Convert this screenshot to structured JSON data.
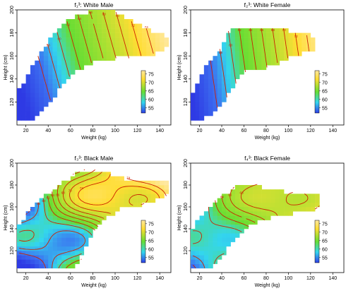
{
  "chart_data": [
    {
      "type": "heatmap",
      "title": "f₁³: White Male",
      "xlabel": "Weight (kg)",
      "ylabel": "Height (cm)",
      "xlim": [
        12,
        150
      ],
      "ylim": [
        100,
        200
      ],
      "xticks": [
        20,
        40,
        60,
        80,
        100,
        120,
        140
      ],
      "yticks": [
        120,
        140,
        160,
        180,
        200
      ],
      "colorbar": {
        "ticks": [
          75,
          70,
          65,
          60,
          55
        ],
        "range": [
          52,
          77
        ]
      },
      "colors": {
        "low": "#3a4cf0",
        "mid_low": "#33d6ee",
        "mid": "#66dd33",
        "high": "#ffdd33",
        "top": "#ffe8a0",
        "contour": "#cc2200"
      },
      "region": [
        [
          14,
          105
        ],
        [
          14,
          130
        ],
        [
          26,
          152
        ],
        [
          42,
          175
        ],
        [
          53,
          188
        ],
        [
          66,
          196
        ],
        [
          80,
          199
        ],
        [
          100,
          199
        ],
        [
          112,
          192
        ],
        [
          124,
          185
        ],
        [
          140,
          180
        ],
        [
          150,
          176
        ],
        [
          150,
          168
        ],
        [
          138,
          162
        ],
        [
          120,
          159
        ],
        [
          100,
          158
        ],
        [
          88,
          158
        ],
        [
          76,
          152
        ],
        [
          64,
          146
        ],
        [
          56,
          140
        ],
        [
          48,
          128
        ],
        [
          40,
          118
        ],
        [
          32,
          110
        ],
        [
          24,
          104
        ],
        [
          14,
          104
        ]
      ],
      "field": {
        "a": 0.173,
        "b": 0.05,
        "c": 0,
        "d": 0,
        "x0": 80,
        "y0": 150,
        "f0": 64
      },
      "contours": [
        {
          "level": 56,
          "label": "56"
        },
        {
          "level": 58,
          "label": "58"
        },
        {
          "level": 60,
          "label": "60"
        },
        {
          "level": 62,
          "label": "62"
        },
        {
          "level": 64,
          "label": "64"
        },
        {
          "level": 66,
          "label": "66"
        },
        {
          "level": 68,
          "label": "68"
        },
        {
          "level": 70,
          "label": "70"
        },
        {
          "level": 72,
          "label": "72"
        },
        {
          "level": 74,
          "label": "74"
        }
      ]
    },
    {
      "type": "heatmap",
      "title": "f₂³: White Female",
      "xlabel": "Weight (kg)",
      "ylabel": "Height (cm)",
      "xlim": [
        12,
        150
      ],
      "ylim": [
        100,
        200
      ],
      "xticks": [
        20,
        40,
        60,
        80,
        100,
        120,
        140
      ],
      "yticks": [
        120,
        140,
        160,
        180,
        200
      ],
      "colorbar": {
        "ticks": [
          75,
          70,
          65,
          60,
          55
        ],
        "range": [
          52,
          77
        ]
      },
      "colors": {
        "low": "#3a4cf0",
        "mid_low": "#33d6ee",
        "mid": "#66dd33",
        "high": "#ffdd33",
        "top": "#ffe8a0",
        "contour": "#cc2200"
      },
      "region": [
        [
          14,
          104
        ],
        [
          14,
          128
        ],
        [
          22,
          145
        ],
        [
          30,
          157
        ],
        [
          40,
          168
        ],
        [
          46,
          178
        ],
        [
          48,
          185
        ],
        [
          70,
          185
        ],
        [
          88,
          185
        ],
        [
          100,
          182
        ],
        [
          110,
          180
        ],
        [
          122,
          178
        ],
        [
          126,
          172
        ],
        [
          124,
          165
        ],
        [
          114,
          162
        ],
        [
          100,
          158
        ],
        [
          86,
          152
        ],
        [
          72,
          148
        ],
        [
          62,
          146
        ],
        [
          54,
          138
        ],
        [
          46,
          126
        ],
        [
          38,
          116
        ],
        [
          30,
          108
        ],
        [
          22,
          104
        ],
        [
          14,
          104
        ]
      ],
      "field": {
        "a": 0.2,
        "b": 0.03,
        "c": 0,
        "d": 0,
        "x0": 70,
        "y0": 155,
        "f0": 64
      },
      "contours": [
        {
          "level": 56,
          "label": "56"
        },
        {
          "level": 58,
          "label": "58"
        },
        {
          "level": 60,
          "label": "60"
        },
        {
          "level": 62,
          "label": "62"
        },
        {
          "level": 64,
          "label": "64"
        },
        {
          "level": 66,
          "label": "66"
        },
        {
          "level": 68,
          "label": "68"
        },
        {
          "level": 70,
          "label": "70"
        },
        {
          "level": 72,
          "label": "72"
        },
        {
          "level": 74,
          "label": "74"
        }
      ]
    },
    {
      "type": "heatmap",
      "title": "f₃³: Black Male",
      "xlabel": "Weight (kg)",
      "ylabel": "Height (cm)",
      "xlim": [
        12,
        150
      ],
      "ylim": [
        100,
        200
      ],
      "xticks": [
        20,
        40,
        60,
        80,
        100,
        120,
        140
      ],
      "yticks": [
        120,
        140,
        160,
        180,
        200
      ],
      "colorbar": {
        "ticks": [
          75,
          70,
          65,
          60,
          55
        ],
        "range": [
          52,
          77
        ]
      },
      "colors": {
        "low": "#3a4cf0",
        "mid_low": "#33d6ee",
        "mid": "#66dd33",
        "high": "#ffdd33",
        "top": "#ffe8a0",
        "contour": "#cc2200"
      },
      "region": [
        [
          14,
          104
        ],
        [
          14,
          142
        ],
        [
          20,
          152
        ],
        [
          28,
          162
        ],
        [
          38,
          170
        ],
        [
          50,
          180
        ],
        [
          60,
          186
        ],
        [
          66,
          192
        ],
        [
          80,
          194
        ],
        [
          92,
          192
        ],
        [
          110,
          186
        ],
        [
          130,
          185
        ],
        [
          146,
          184
        ],
        [
          150,
          180
        ],
        [
          150,
          172
        ],
        [
          140,
          168
        ],
        [
          124,
          162
        ],
        [
          110,
          160
        ],
        [
          100,
          155
        ],
        [
          92,
          150
        ],
        [
          86,
          144
        ],
        [
          80,
          136
        ],
        [
          74,
          124
        ],
        [
          68,
          110
        ],
        [
          60,
          104
        ],
        [
          14,
          104
        ]
      ],
      "field": {
        "a": 0.16,
        "b": 0.08,
        "c": 6,
        "d": 0,
        "x0": 70,
        "y0": 150,
        "f0": 65
      },
      "contours": [
        {
          "level": 56,
          "label": "56"
        },
        {
          "level": 58,
          "label": "58"
        },
        {
          "level": 60,
          "label": "60"
        },
        {
          "level": 62,
          "label": "62"
        },
        {
          "level": 64,
          "label": "64"
        },
        {
          "level": 66,
          "label": "66"
        },
        {
          "level": 68,
          "label": "68"
        },
        {
          "level": 70,
          "label": "70"
        },
        {
          "level": 72,
          "label": "72"
        },
        {
          "level": 74,
          "label": "74"
        }
      ]
    },
    {
      "type": "heatmap",
      "title": "f₄³: Black Female",
      "xlabel": "Weight (kg)",
      "ylabel": "Height (cm)",
      "xlim": [
        12,
        150
      ],
      "ylim": [
        100,
        200
      ],
      "xticks": [
        20,
        40,
        60,
        80,
        100,
        120,
        140
      ],
      "yticks": [
        120,
        140,
        160,
        180,
        200
      ],
      "colorbar": {
        "ticks": [
          75,
          70,
          65,
          60,
          55
        ],
        "range": [
          52,
          77
        ]
      },
      "colors": {
        "low": "#3a4cf0",
        "mid_low": "#33d6ee",
        "mid": "#66dd33",
        "high": "#ffdd33",
        "top": "#ffe8a0",
        "contour": "#cc2200"
      },
      "region": [
        [
          14,
          104
        ],
        [
          14,
          140
        ],
        [
          20,
          150
        ],
        [
          28,
          158
        ],
        [
          36,
          166
        ],
        [
          44,
          172
        ],
        [
          52,
          178
        ],
        [
          62,
          182
        ],
        [
          70,
          182
        ],
        [
          80,
          176
        ],
        [
          96,
          174
        ],
        [
          112,
          172
        ],
        [
          124,
          172
        ],
        [
          130,
          168
        ],
        [
          126,
          158
        ],
        [
          110,
          156
        ],
        [
          96,
          152
        ],
        [
          84,
          150
        ],
        [
          72,
          146
        ],
        [
          62,
          140
        ],
        [
          52,
          130
        ],
        [
          44,
          120
        ],
        [
          36,
          110
        ],
        [
          28,
          104
        ],
        [
          14,
          104
        ]
      ],
      "field": {
        "a": 0.13,
        "b": 0.02,
        "c": 4,
        "d": 0,
        "x0": 60,
        "y0": 150,
        "f0": 64
      },
      "contours": [
        {
          "level": 56,
          "label": "56"
        },
        {
          "level": 58,
          "label": "58"
        },
        {
          "level": 60,
          "label": "60"
        },
        {
          "level": 62,
          "label": "62"
        },
        {
          "level": 64,
          "label": "64"
        },
        {
          "level": 66,
          "label": "66"
        },
        {
          "level": 68,
          "label": "68"
        },
        {
          "level": 70,
          "label": "70"
        },
        {
          "level": 72,
          "label": "72"
        }
      ]
    }
  ]
}
